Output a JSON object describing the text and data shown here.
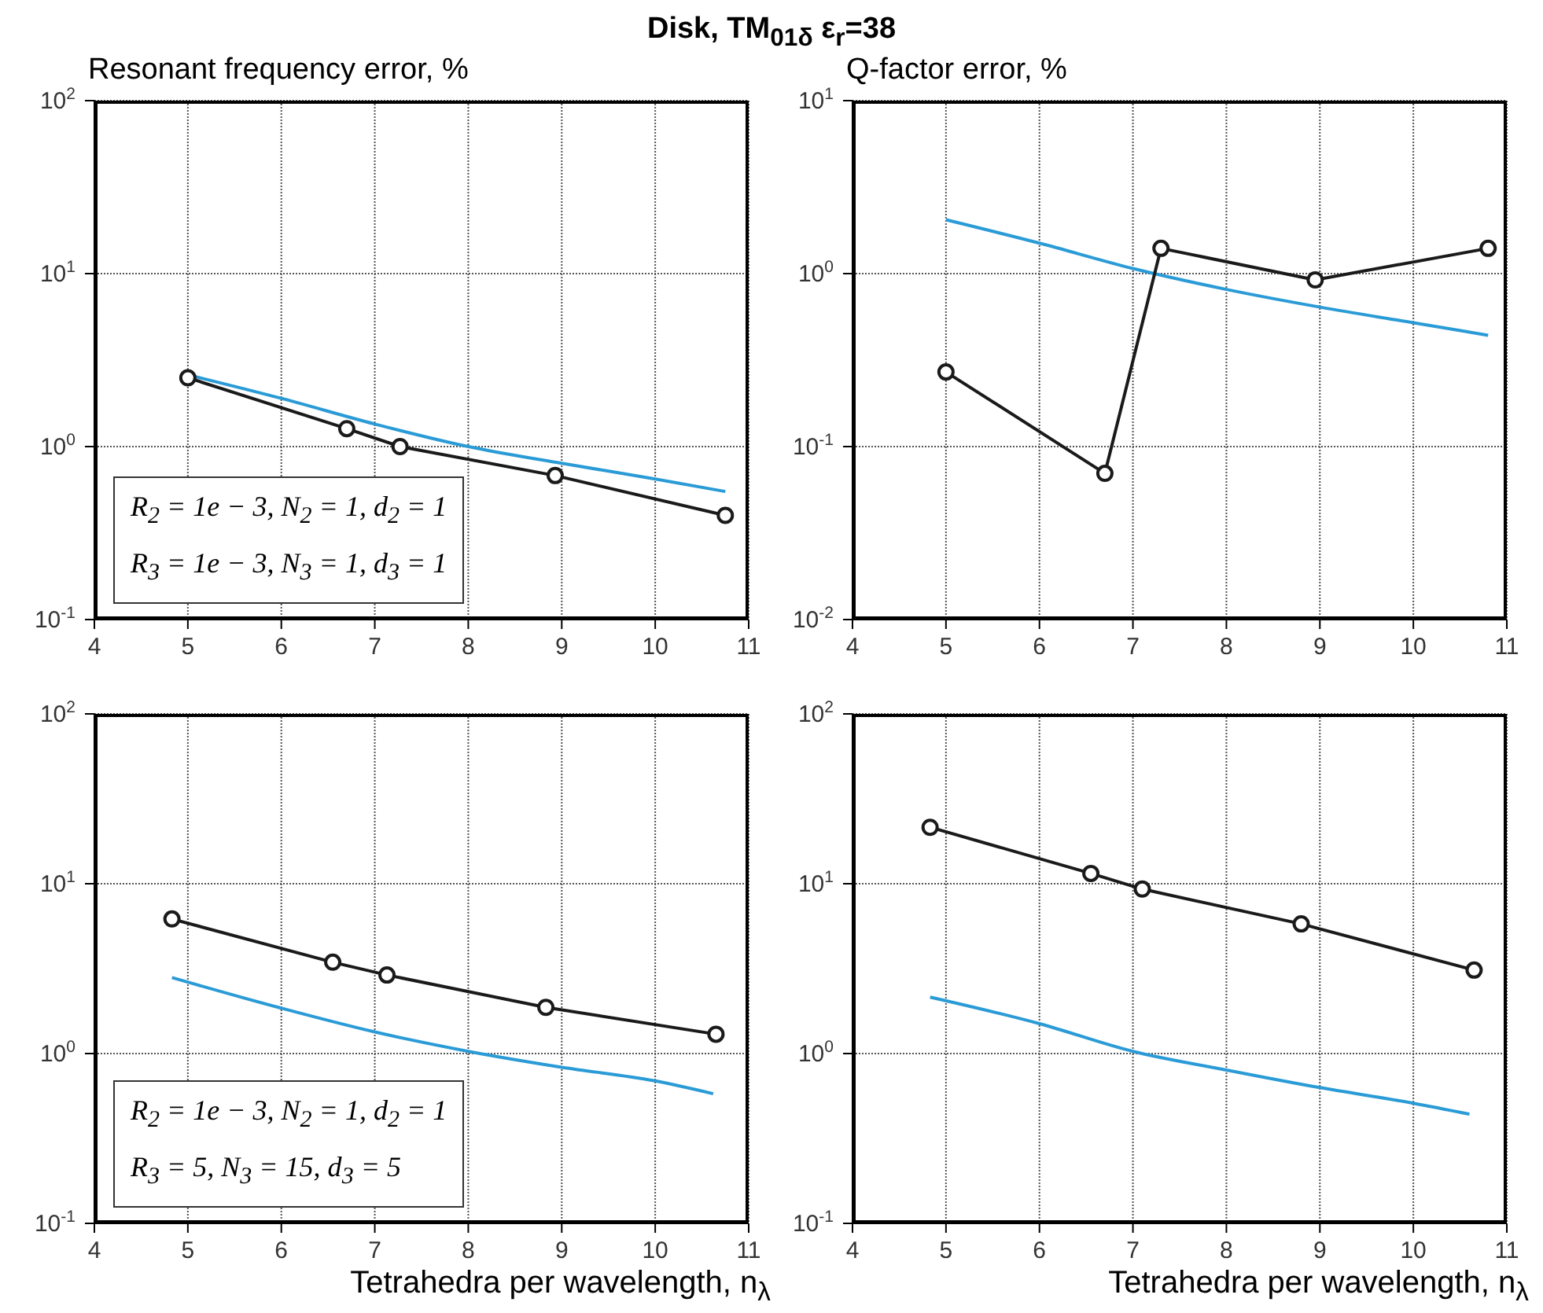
{
  "chart_data": [
    {
      "type": "line",
      "title": "Disk, TM$_{01δ}$ ε$_{r}$=38",
      "ylabel": "Resonant frequency error, %",
      "log": "y",
      "grid": true,
      "xlim": [
        4,
        11
      ],
      "xticks": [
        4,
        5,
        6,
        7,
        8,
        9,
        10,
        11
      ],
      "ylim": [
        0.1,
        100
      ],
      "yticks": [
        {
          "value": 0.1,
          "label": "10$^{-1}$"
        },
        {
          "value": 1,
          "label": "10$^{0}$"
        },
        {
          "value": 10,
          "label": "10$^{1}$"
        },
        {
          "value": 100,
          "label": "10$^{2}$"
        }
      ],
      "annotations": [
        "R$_{2}$ = 1e − 3, N$_{2}$ = 1, d$_{2}$ = 1",
        "R$_{3}$ = 1e − 3, N$_{3}$ = 1, d$_{3}$ = 1"
      ],
      "series": [
        {
          "color": "#2a9bd6",
          "marker": "none",
          "x": [
            5,
            6,
            7,
            8,
            9,
            10,
            10.75
          ],
          "values": [
            2.6,
            1.9,
            1.35,
            1.0,
            0.8,
            0.65,
            0.55
          ]
        },
        {
          "color": "#1a1a1a",
          "marker": "circle",
          "x": [
            5,
            6.7,
            7.27,
            8.93,
            10.75
          ],
          "values": [
            2.5,
            1.27,
            1.0,
            0.68,
            0.4
          ]
        }
      ]
    },
    {
      "type": "line",
      "ylabel": "Q-factor error, %",
      "log": "y",
      "grid": true,
      "xlim": [
        4,
        11
      ],
      "xticks": [
        4,
        5,
        6,
        7,
        8,
        9,
        10,
        11
      ],
      "ylim": [
        0.01,
        10
      ],
      "yticks": [
        {
          "value": 0.01,
          "label": "10$^{-2}$"
        },
        {
          "value": 0.1,
          "label": "10$^{-1}$"
        },
        {
          "value": 1,
          "label": "10$^{0}$"
        },
        {
          "value": 10,
          "label": "10$^{1}$"
        }
      ],
      "series": [
        {
          "color": "#2a9bd6",
          "marker": "none",
          "x": [
            5,
            6,
            7,
            8,
            9,
            10,
            10.8
          ],
          "values": [
            2.05,
            1.5,
            1.07,
            0.81,
            0.64,
            0.52,
            0.44
          ]
        },
        {
          "color": "#1a1a1a",
          "marker": "circle",
          "x": [
            5,
            6.7,
            7.3,
            8.95,
            10.8
          ],
          "values": [
            0.27,
            0.07,
            1.4,
            0.92,
            1.4
          ]
        }
      ]
    },
    {
      "type": "line",
      "ylabel": null,
      "xlabel": "Tetrahedra per wavelength, n$_{λ}$",
      "log": "y",
      "grid": true,
      "xlim": [
        4,
        11
      ],
      "xticks": [
        4,
        5,
        6,
        7,
        8,
        9,
        10,
        11
      ],
      "ylim": [
        0.1,
        100
      ],
      "yticks": [
        {
          "value": 0.1,
          "label": "10$^{-1}$"
        },
        {
          "value": 1,
          "label": "10$^{0}$"
        },
        {
          "value": 10,
          "label": "10$^{1}$"
        },
        {
          "value": 100,
          "label": "10$^{2}$"
        }
      ],
      "annotations": [
        "R$_{2}$ = 1e − 3, N$_{2}$ = 1, d$_{2}$ = 1",
        "R$_{3}$ = 5, N$_{3}$ = 15, d$_{3}$ = 5"
      ],
      "series": [
        {
          "color": "#2a9bd6",
          "marker": "none",
          "x": [
            4.83,
            6,
            7,
            8,
            9,
            10,
            10.62
          ],
          "values": [
            2.8,
            1.85,
            1.34,
            1.03,
            0.83,
            0.69,
            0.58
          ]
        },
        {
          "color": "#1a1a1a",
          "marker": "circle",
          "x": [
            4.83,
            6.55,
            7.13,
            8.83,
            10.65
          ],
          "values": [
            6.2,
            3.45,
            2.9,
            1.87,
            1.3
          ]
        }
      ]
    },
    {
      "type": "line",
      "xlabel": "Tetrahedra per wavelength, n$_{λ}$",
      "log": "y",
      "grid": true,
      "xlim": [
        4,
        11
      ],
      "xticks": [
        4,
        5,
        6,
        7,
        8,
        9,
        10,
        11
      ],
      "ylim": [
        0.1,
        100
      ],
      "yticks": [
        {
          "value": 0.1,
          "label": "10$^{-1}$"
        },
        {
          "value": 1,
          "label": "10$^{0}$"
        },
        {
          "value": 10,
          "label": "10$^{1}$"
        },
        {
          "value": 100,
          "label": "10$^{2}$"
        }
      ],
      "series": [
        {
          "color": "#2a9bd6",
          "marker": "none",
          "x": [
            4.83,
            6,
            7,
            8,
            9,
            10,
            10.6
          ],
          "values": [
            2.15,
            1.5,
            1.03,
            0.8,
            0.63,
            0.51,
            0.44
          ]
        },
        {
          "color": "#1a1a1a",
          "marker": "circle",
          "x": [
            4.83,
            6.55,
            7.1,
            8.8,
            10.65
          ],
          "values": [
            21.5,
            11.5,
            9.3,
            5.8,
            3.1
          ]
        }
      ]
    }
  ]
}
